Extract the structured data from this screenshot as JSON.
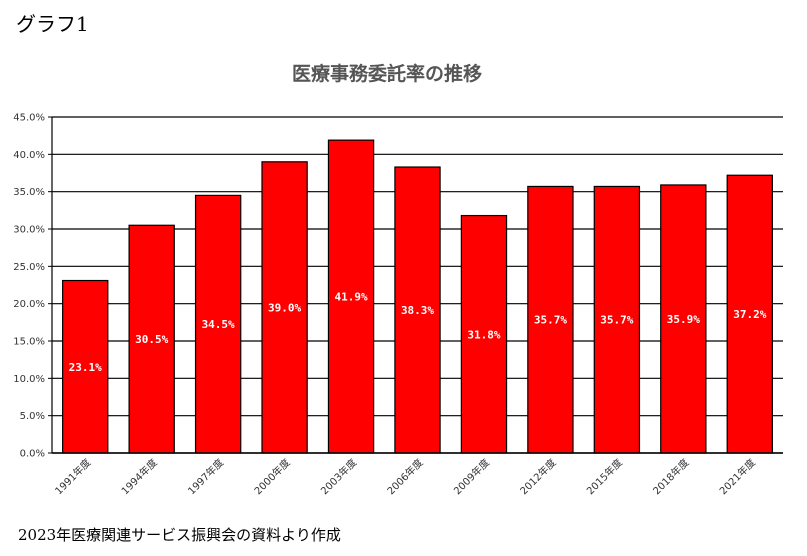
{
  "graph_label": "グラフ1",
  "source_note": "2023年医療関連サービス振興会の資料より作成",
  "chart_data": {
    "type": "bar",
    "title": "医療事務委託率の推移",
    "xlabel": "",
    "ylabel": "",
    "categories": [
      "1991年度",
      "1994年度",
      "1997年度",
      "2000年度",
      "2003年度",
      "2006年度",
      "2009年度",
      "2012年度",
      "2015年度",
      "2018年度",
      "2021年度"
    ],
    "values": [
      23.1,
      30.5,
      34.5,
      39.0,
      41.9,
      38.3,
      31.8,
      35.7,
      35.7,
      35.9,
      37.2
    ],
    "data_labels": [
      "23.1%",
      "30.5%",
      "34.5%",
      "39.0%",
      "41.9%",
      "38.3%",
      "31.8%",
      "35.7%",
      "35.7%",
      "35.9%",
      "37.2%"
    ],
    "ylim": [
      0,
      45
    ],
    "yticks": [
      0,
      5,
      10,
      15,
      20,
      25,
      30,
      35,
      40,
      45
    ],
    "ytick_labels": [
      "0.0%",
      "5.0%",
      "10.0%",
      "15.0%",
      "20.0%",
      "25.0%",
      "30.0%",
      "35.0%",
      "40.0%",
      "45.0%"
    ],
    "grid": true,
    "bar_color": "#ff0000",
    "label_color": "#ffffff"
  }
}
